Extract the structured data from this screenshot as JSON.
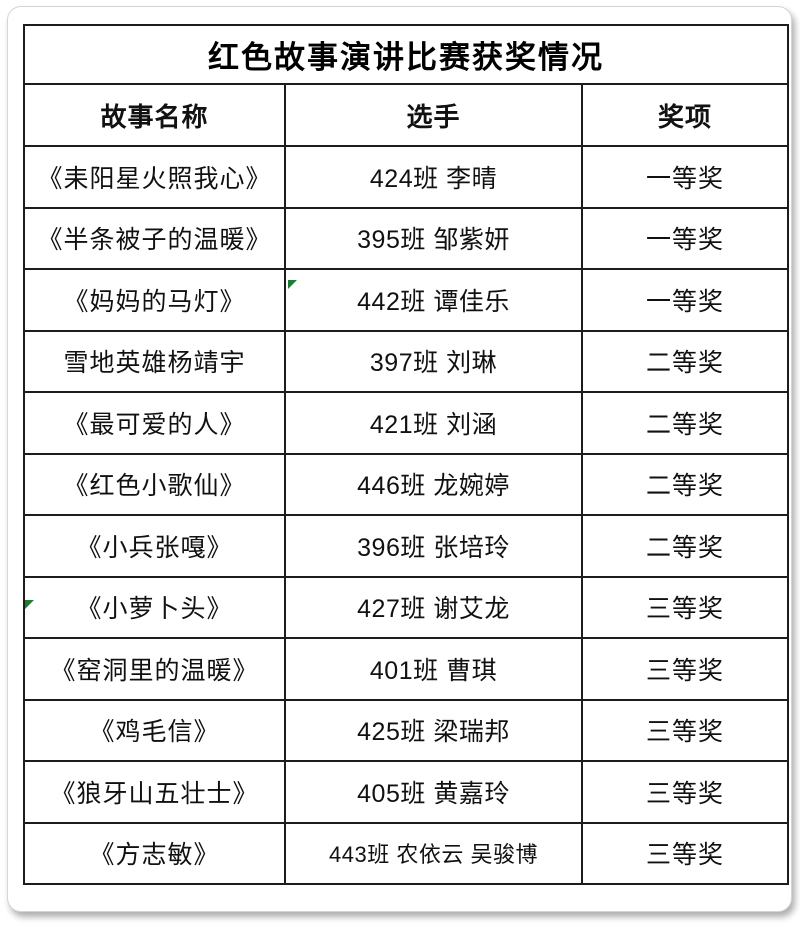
{
  "table": {
    "title": "红色故事演讲比赛获奖情况",
    "columns": {
      "story": "故事名称",
      "contestant": "选手",
      "award": "奖项"
    },
    "rows": [
      {
        "story": "《耒阳星火照我心》",
        "contestant": "424班 李晴",
        "award": "一等奖"
      },
      {
        "story": "《半条被子的温暖》",
        "contestant": "395班 邹紫妍",
        "award": "一等奖"
      },
      {
        "story": "《妈妈的马灯》",
        "contestant": "442班 谭佳乐",
        "award": "一等奖"
      },
      {
        "story": "雪地英雄杨靖宇",
        "contestant": "397班 刘琳",
        "award": "二等奖"
      },
      {
        "story": "《最可爱的人》",
        "contestant": "421班 刘涵",
        "award": "二等奖"
      },
      {
        "story": "《红色小歌仙》",
        "contestant": "446班 龙婉婷",
        "award": "二等奖"
      },
      {
        "story": "《小兵张嘎》",
        "contestant": "396班 张培玲",
        "award": "二等奖"
      },
      {
        "story": "《小萝卜头》",
        "contestant": "427班 谢艾龙",
        "award": "三等奖"
      },
      {
        "story": "《窑洞里的温暖》",
        "contestant": "401班 曹琪",
        "award": "三等奖"
      },
      {
        "story": "《鸡毛信》",
        "contestant": "425班 梁瑞邦",
        "award": "三等奖"
      },
      {
        "story": "《狼牙山五壮士》",
        "contestant": "405班 黄嘉玲",
        "award": "三等奖"
      },
      {
        "story": "《方志敏》",
        "contestant": "443班 农依云 吴骏博",
        "award": "三等奖"
      }
    ]
  },
  "colors": {
    "border_dark": "#1c1c1c",
    "flag_green": "#1f7a33",
    "card_edge_gray": "#d5d5d5"
  },
  "markers": {
    "green_triangle_flag_count": 2
  }
}
